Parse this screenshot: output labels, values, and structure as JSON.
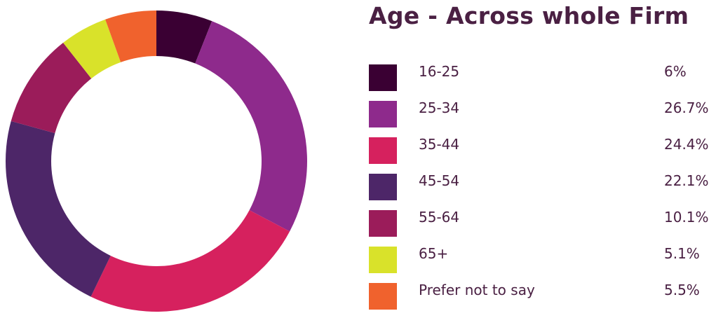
{
  "chart_data": {
    "type": "pie",
    "title": "Age - Across whole Firm",
    "legend_position": "right",
    "categories": [
      "16-25",
      "25-34",
      "35-44",
      "45-54",
      "55-64",
      "65+",
      "Prefer not to say"
    ],
    "values": [
      6,
      26.7,
      24.4,
      22.1,
      10.1,
      5.1,
      5.5
    ],
    "value_labels": [
      "6%",
      "26.7%",
      "24.4%",
      "22.1%",
      "10.1%",
      "5.1%",
      "5.5%"
    ],
    "colors": [
      "#3a0033",
      "#8e2a8c",
      "#d6215e",
      "#4d2668",
      "#9b1c5a",
      "#d9e22a",
      "#f0622d"
    ]
  }
}
